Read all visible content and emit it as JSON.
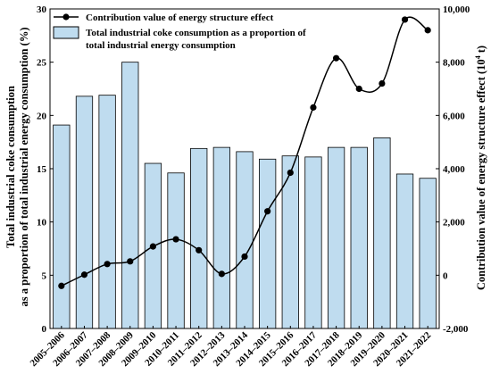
{
  "chart_data": {
    "type": "bar+line",
    "categories": [
      "2005–2006",
      "2006–2007",
      "2007–2008",
      "2008–2009",
      "2009–2010",
      "2010–2011",
      "2011–2012",
      "2012–2013",
      "2013–2014",
      "2014–2015",
      "2015–2016",
      "2016–2017",
      "2017–2018",
      "2018–2019",
      "2019–2020",
      "2020–2021",
      "2021–2022"
    ],
    "bar_series": {
      "name": "Total industrial coke consumption as a proportion of total industrial energy consumption",
      "legend_lines": [
        "Total industrial coke consumption as a proportion of",
        "total industrial energy consumption"
      ],
      "values": [
        19.1,
        21.8,
        21.9,
        25.0,
        15.5,
        14.6,
        16.9,
        17.0,
        16.6,
        15.9,
        16.2,
        16.1,
        17.0,
        17.0,
        17.9,
        14.5,
        14.1
      ],
      "color": "#bfdcef",
      "stroke": "#000000",
      "axis": "left"
    },
    "line_series": {
      "name": "Contribution value of energy structure effect",
      "values": [
        -400,
        20,
        420,
        520,
        1080,
        1350,
        940,
        50,
        700,
        2400,
        3850,
        6300,
        8150,
        7000,
        7200,
        9600,
        9200
      ],
      "color": "#000000",
      "axis": "right"
    },
    "left_axis": {
      "label_lines": [
        "Total industrial coke consumption",
        "as a proportion of total industrial energy consumption (%)"
      ],
      "min": 0,
      "max": 30,
      "ticks": [
        0,
        5,
        10,
        15,
        20,
        25,
        30
      ]
    },
    "right_axis": {
      "label": "Contribution value of energy structure effect (10",
      "label_sup": "4",
      "label_end": " t)",
      "min": -2000,
      "max": 10000,
      "ticks": [
        -2000,
        0,
        2000,
        4000,
        6000,
        8000,
        10000
      ],
      "tick_labels": [
        "-2,000",
        "0",
        "2,000",
        "4,000",
        "6,000",
        "8,000",
        "10,000"
      ]
    },
    "legend_position": "top-left",
    "grid": false
  }
}
